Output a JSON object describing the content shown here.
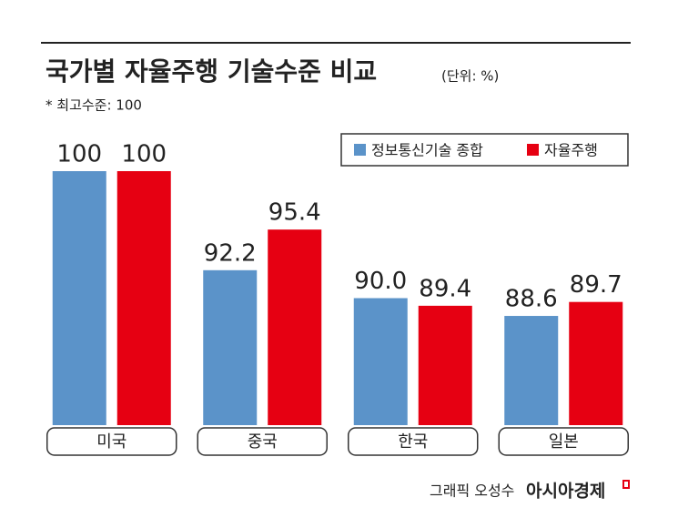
{
  "chart_data": {
    "type": "bar",
    "title": "국가별 자율주행 기술수준 비교",
    "unit": "(단위: %)",
    "note": "* 최고수준: 100",
    "credit": "그래픽 오성수",
    "source": "아시아경제",
    "categories": [
      "미국",
      "중국",
      "한국",
      "일본"
    ],
    "series": [
      {
        "name": "정보통신기술 종합",
        "color": "#5b93c9",
        "values": [
          100,
          92.2,
          90.0,
          88.6
        ],
        "value_labels": [
          "100",
          "92.2",
          "90.0",
          "88.6"
        ]
      },
      {
        "name": "자율주행",
        "color": "#e60012",
        "values": [
          100,
          95.4,
          89.4,
          89.7
        ],
        "value_labels": [
          "100",
          "95.4",
          "89.4",
          "89.7"
        ]
      }
    ],
    "ylim": [
      80,
      100
    ],
    "legend": "top-right"
  }
}
